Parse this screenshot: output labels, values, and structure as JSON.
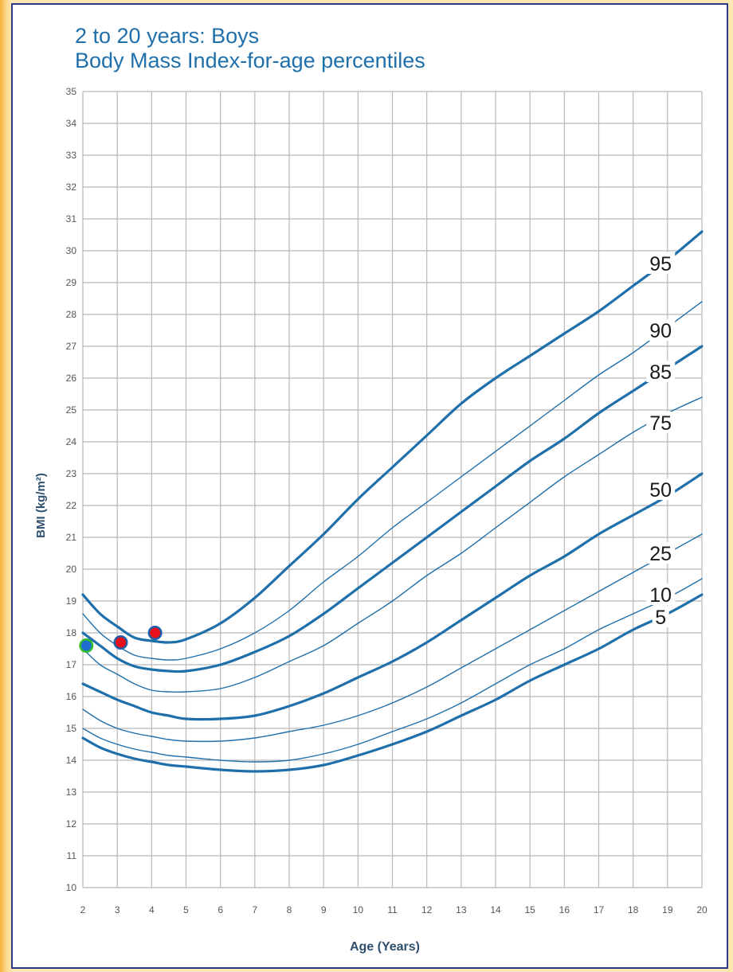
{
  "title": {
    "line1": "2 to 20 years: Boys",
    "line2": "Body Mass Index-for-age percentiles"
  },
  "colors": {
    "curve": "#1f6fab",
    "grid": "#b8b8b8",
    "title": "#1f6fab",
    "point_red": "#e8101b",
    "point_blue": "#1f6fd0",
    "point_ring_green": "#2fbf2f",
    "point_ring_blue": "#1f5faa"
  },
  "chart_data": {
    "type": "line",
    "title": "2 to 20 years: Boys Body Mass Index-for-age percentiles",
    "xlabel": "Age (Years)",
    "ylabel": "BMI (kg/m²)",
    "xlim": [
      2,
      20
    ],
    "ylim": [
      10,
      35
    ],
    "xticks": [
      "2",
      "3",
      "4",
      "5",
      "6",
      "7",
      "8",
      "9",
      "10",
      "11",
      "12",
      "13",
      "14",
      "15",
      "16",
      "17",
      "18",
      "19",
      "20"
    ],
    "yticks": [
      "10",
      "11",
      "12",
      "13",
      "14",
      "15",
      "16",
      "17",
      "18",
      "19",
      "20",
      "21",
      "22",
      "23",
      "24",
      "25",
      "26",
      "27",
      "28",
      "29",
      "30",
      "31",
      "32",
      "33",
      "34",
      "35"
    ],
    "grid": true,
    "x": [
      2,
      2.5,
      3,
      3.5,
      4,
      4.5,
      5,
      6,
      7,
      8,
      9,
      10,
      11,
      12,
      13,
      14,
      15,
      16,
      17,
      18,
      19,
      20
    ],
    "series": [
      {
        "name": "95",
        "bold": true,
        "values": [
          19.2,
          18.6,
          18.2,
          17.85,
          17.75,
          17.7,
          17.8,
          18.3,
          19.1,
          20.1,
          21.1,
          22.2,
          23.2,
          24.2,
          25.2,
          26.0,
          26.7,
          27.4,
          28.1,
          28.9,
          29.7,
          30.6
        ]
      },
      {
        "name": "90",
        "bold": false,
        "values": [
          18.6,
          18.0,
          17.6,
          17.3,
          17.2,
          17.15,
          17.2,
          17.5,
          18.0,
          18.7,
          19.6,
          20.4,
          21.3,
          22.1,
          22.9,
          23.7,
          24.5,
          25.3,
          26.1,
          26.8,
          27.6,
          28.4
        ]
      },
      {
        "name": "85",
        "bold": true,
        "values": [
          18.0,
          17.6,
          17.2,
          16.95,
          16.85,
          16.8,
          16.8,
          17.0,
          17.4,
          17.9,
          18.6,
          19.4,
          20.2,
          21.0,
          21.8,
          22.6,
          23.4,
          24.1,
          24.9,
          25.6,
          26.3,
          27.0
        ]
      },
      {
        "name": "75",
        "bold": false,
        "values": [
          17.5,
          17.0,
          16.7,
          16.4,
          16.2,
          16.15,
          16.15,
          16.25,
          16.6,
          17.1,
          17.6,
          18.3,
          19.0,
          19.8,
          20.5,
          21.3,
          22.1,
          22.9,
          23.6,
          24.3,
          24.9,
          25.4
        ]
      },
      {
        "name": "50",
        "bold": true,
        "values": [
          16.4,
          16.15,
          15.9,
          15.7,
          15.5,
          15.4,
          15.3,
          15.3,
          15.4,
          15.7,
          16.1,
          16.6,
          17.1,
          17.7,
          18.4,
          19.1,
          19.8,
          20.4,
          21.1,
          21.7,
          22.3,
          23.0
        ]
      },
      {
        "name": "25",
        "bold": false,
        "values": [
          15.6,
          15.25,
          15.0,
          14.85,
          14.75,
          14.65,
          14.6,
          14.6,
          14.7,
          14.9,
          15.1,
          15.4,
          15.8,
          16.3,
          16.9,
          17.5,
          18.1,
          18.7,
          19.3,
          19.9,
          20.5,
          21.1
        ]
      },
      {
        "name": "10",
        "bold": false,
        "values": [
          15.0,
          14.7,
          14.5,
          14.35,
          14.25,
          14.15,
          14.1,
          14.0,
          13.95,
          14.0,
          14.2,
          14.5,
          14.9,
          15.3,
          15.8,
          16.4,
          17.0,
          17.5,
          18.1,
          18.6,
          19.1,
          19.7
        ]
      },
      {
        "name": "5",
        "bold": true,
        "values": [
          14.7,
          14.4,
          14.2,
          14.05,
          13.95,
          13.85,
          13.8,
          13.7,
          13.65,
          13.7,
          13.85,
          14.15,
          14.5,
          14.9,
          15.4,
          15.9,
          16.5,
          17.0,
          17.5,
          18.1,
          18.6,
          19.2
        ]
      }
    ],
    "points": [
      {
        "x": 2.1,
        "y": 17.6,
        "fill": "#1f6fd0",
        "ring": "#2fbf2f"
      },
      {
        "x": 3.1,
        "y": 17.7,
        "fill": "#e8101b",
        "ring": "#1f5faa"
      },
      {
        "x": 4.1,
        "y": 18.0,
        "fill": "#e8101b",
        "ring": "#1f5faa"
      }
    ],
    "curve_labels": [
      {
        "text": "95",
        "x": 18.8,
        "y": 29.6
      },
      {
        "text": "90",
        "x": 18.8,
        "y": 27.5
      },
      {
        "text": "85",
        "x": 18.8,
        "y": 26.2
      },
      {
        "text": "75",
        "x": 18.8,
        "y": 24.6
      },
      {
        "text": "50",
        "x": 18.8,
        "y": 22.5
      },
      {
        "text": "25",
        "x": 18.8,
        "y": 20.5
      },
      {
        "text": "10",
        "x": 18.8,
        "y": 19.2
      },
      {
        "text": "5",
        "x": 18.8,
        "y": 18.5
      }
    ]
  }
}
